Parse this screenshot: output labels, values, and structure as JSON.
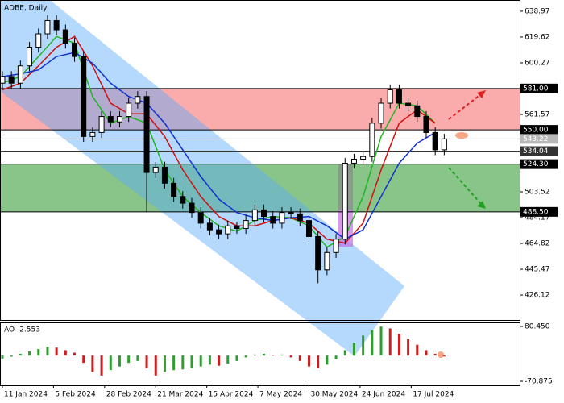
{
  "chart_data": {
    "type": "candlestick",
    "title": "ADBE, Daily",
    "x": [
      0,
      3,
      6,
      9,
      12,
      15,
      18,
      21,
      24,
      27,
      30,
      33,
      36,
      39,
      42,
      45,
      48,
      51,
      54,
      57,
      60,
      63,
      66,
      69,
      72,
      75,
      78,
      81,
      84,
      87,
      90,
      93,
      96,
      99,
      102,
      105,
      108,
      111,
      114,
      117,
      120,
      123,
      126,
      129,
      132,
      135,
      138,
      141,
      144,
      147
    ],
    "open": [
      585,
      590,
      585,
      598,
      612,
      622,
      632,
      625,
      615,
      605,
      545,
      548,
      560,
      556,
      560,
      570,
      575,
      518,
      522,
      510,
      500,
      495,
      488,
      480,
      475,
      472,
      478,
      476,
      482,
      490,
      485,
      480,
      488,
      487,
      482,
      470,
      445,
      458,
      468,
      525,
      528,
      530,
      555,
      570,
      580,
      570,
      568,
      560,
      548,
      535
    ],
    "high": [
      594,
      594,
      602,
      616,
      626,
      636,
      636,
      629,
      619,
      609,
      552,
      564,
      564,
      564,
      574,
      579,
      579,
      526,
      526,
      514,
      504,
      499,
      492,
      484,
      479,
      482,
      481,
      486,
      494,
      494,
      489,
      492,
      492,
      491,
      486,
      474,
      462,
      472,
      529,
      532,
      534,
      559,
      574,
      584,
      584,
      574,
      572,
      564,
      552,
      547
    ],
    "low": [
      581,
      581,
      581,
      594,
      608,
      618,
      621,
      611,
      601,
      541,
      541,
      544,
      552,
      552,
      556,
      566,
      488,
      514,
      506,
      496,
      491,
      484,
      476,
      471,
      468,
      468,
      472,
      472,
      478,
      481,
      476,
      476,
      483,
      478,
      466,
      435,
      441,
      454,
      464,
      521,
      524,
      526,
      551,
      566,
      566,
      564,
      556,
      544,
      531,
      531
    ],
    "close": [
      590,
      585,
      598,
      612,
      622,
      632,
      625,
      615,
      605,
      545,
      548,
      560,
      556,
      560,
      570,
      575,
      518,
      522,
      510,
      500,
      495,
      488,
      480,
      475,
      472,
      478,
      476,
      482,
      490,
      485,
      480,
      488,
      487,
      482,
      470,
      445,
      458,
      468,
      525,
      528,
      530,
      555,
      570,
      580,
      570,
      568,
      560,
      548,
      535,
      543.22
    ],
    "up_color": "#ffffff",
    "down_color": "#000000",
    "wick_color": "#000000",
    "xlim": [
      -0.8,
      172.1
    ],
    "xticks": [
      {
        "value": 0,
        "label": "11 Jan 2024"
      },
      {
        "value": 17,
        "label": "5 Feb 2024"
      },
      {
        "value": 34,
        "label": "28 Feb 2024"
      },
      {
        "value": 51,
        "label": "21 Mar 2024"
      },
      {
        "value": 68,
        "label": "15 Apr 2024"
      },
      {
        "value": 85,
        "label": "7 May 2024"
      },
      {
        "value": 102,
        "label": "30 May 2024"
      },
      {
        "value": 119,
        "label": "24 Jun 2024"
      },
      {
        "value": 136,
        "label": "17 Jul 2024"
      }
    ],
    "ylim": [
      407.4,
      647.4
    ],
    "yticks": [
      638.97,
      619.62,
      600.27,
      561.57,
      503.52,
      484.17,
      464.82,
      445.47,
      426.12
    ],
    "line_x": [
      0,
      6,
      12,
      18,
      24,
      30,
      36,
      42,
      48,
      54,
      60,
      66,
      72,
      78,
      84,
      90,
      96,
      102,
      108,
      114,
      120,
      126,
      132,
      138,
      144
    ],
    "lines": [
      {
        "color": "#22b422",
        "values": [
          585,
          590,
          605,
          620,
          615,
          575,
          555,
          560,
          555,
          520,
          500,
          488,
          478,
          474,
          482,
          485,
          484,
          478,
          462,
          470,
          500,
          545,
          570,
          568,
          555
        ]
      },
      {
        "color": "#d01010",
        "values": [
          580,
          585,
          598,
          612,
          620,
          598,
          570,
          562,
          562,
          545,
          520,
          500,
          485,
          478,
          478,
          482,
          484,
          480,
          468,
          465,
          480,
          520,
          555,
          565,
          555
        ]
      },
      {
        "color": "#1030d0",
        "values": [
          590,
          592,
          595,
          605,
          608,
          600,
          585,
          575,
          570,
          555,
          535,
          515,
          498,
          488,
          484,
          482,
          484,
          485,
          478,
          468,
          475,
          500,
          525,
          540,
          548
        ]
      }
    ],
    "zones": [
      {
        "from": 550,
        "to": 581,
        "color": "rgba(245,90,90,0.5)"
      },
      {
        "from": 488.5,
        "to": 524.3,
        "color": "rgba(40,150,40,0.55)"
      }
    ],
    "levels": [
      {
        "value": 581,
        "label": "581.00"
      },
      {
        "value": 550,
        "label": "550.00"
      },
      543.22,
      534.04,
      {
        "value": 524.3,
        "label": "524.30"
      },
      {
        "value": 488.5,
        "label": "488.50"
      }
    ],
    "level_colors": [
      "#000000",
      "#000000",
      "#b8b8b8",
      "#333333",
      "#000000",
      "#000000"
    ],
    "indicator": {
      "type": "bar",
      "label": "AO -2.553",
      "values": [
        -8,
        -3,
        5,
        12,
        18,
        25,
        22,
        15,
        8,
        -20,
        -45,
        -55,
        -40,
        -30,
        -20,
        -15,
        -35,
        -55,
        -45,
        -40,
        -38,
        -35,
        -30,
        -25,
        -28,
        -22,
        -15,
        -5,
        3,
        5,
        2,
        3,
        -5,
        -15,
        -30,
        -35,
        -25,
        -10,
        15,
        35,
        55,
        70,
        80,
        75,
        60,
        45,
        30,
        15,
        5,
        -2.553
      ],
      "up_color": "#2f9e2f",
      "down_color": "#cc1e1e",
      "ylim": [
        -82,
        91.6
      ],
      "yticks": [
        {
          "value": 80.45,
          "label": "80.450"
        },
        {
          "value": -70.875,
          "label": "-70.875"
        }
      ]
    }
  }
}
